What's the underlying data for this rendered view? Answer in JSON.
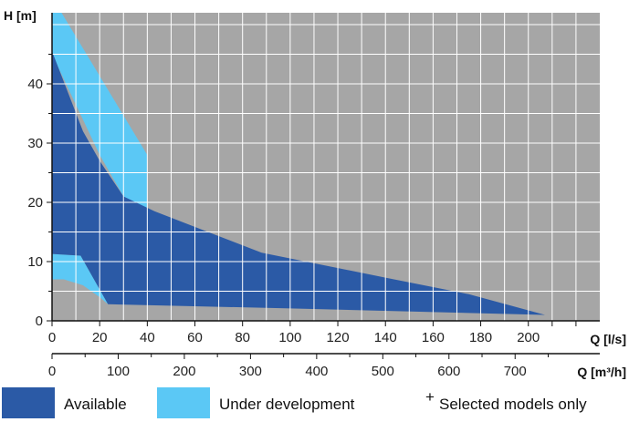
{
  "chart_data": {
    "type": "area",
    "title": "",
    "ylabel": "H [m]",
    "xlabel": "Q [l/s]",
    "xlabel_secondary": "Q [m³/h]",
    "xlim": [
      0,
      230
    ],
    "ylim": [
      0,
      52
    ],
    "secondary_xlim": [
      0,
      828
    ],
    "xticks": [
      0,
      20,
      40,
      60,
      80,
      100,
      120,
      140,
      160,
      180,
      200
    ],
    "xtick_labels": [
      "0",
      "20",
      "40",
      "60",
      "80",
      "100",
      "120",
      "140",
      "160",
      "180",
      "200"
    ],
    "secondary_xticks": [
      0,
      100,
      200,
      300,
      400,
      500,
      600,
      700
    ],
    "secondary_xtick_labels": [
      "0",
      "100",
      "200",
      "300",
      "400",
      "500",
      "600",
      "700"
    ],
    "yticks": [
      0,
      10,
      20,
      30,
      40
    ],
    "ytick_labels": [
      "0",
      "10",
      "20",
      "30",
      "40"
    ],
    "grid": true,
    "legend_position": "bottom",
    "colors": {
      "background": "#a6a6a6",
      "grid": "#ffffff",
      "available": "#2b5aa6",
      "under_development": "#5bc8f5",
      "axis": "#111111"
    },
    "series": [
      {
        "name": "Under development",
        "polygon": [
          [
            0,
            52
          ],
          [
            4,
            52
          ],
          [
            40,
            28
          ],
          [
            40,
            18.5
          ],
          [
            30,
            21
          ],
          [
            20,
            28
          ],
          [
            0,
            45
          ],
          [
            0,
            52
          ]
        ]
      },
      {
        "name": "Under development",
        "polygon": [
          [
            0,
            7
          ],
          [
            5,
            7
          ],
          [
            13,
            6
          ],
          [
            20,
            4
          ],
          [
            23.5,
            2.8
          ],
          [
            19,
            6
          ],
          [
            12,
            11
          ],
          [
            0,
            11.3
          ],
          [
            0,
            7
          ]
        ]
      },
      {
        "name": "Available",
        "polygon": [
          [
            0,
            45.5
          ],
          [
            13,
            32
          ],
          [
            20,
            27
          ],
          [
            30,
            21
          ],
          [
            43,
            18.5
          ],
          [
            88,
            11.5
          ],
          [
            140,
            7.3
          ],
          [
            175,
            4.5
          ],
          [
            207,
            1
          ]
        ],
        "lower": [
          [
            0,
            11.3
          ],
          [
            12,
            11
          ],
          [
            19,
            6
          ],
          [
            23.5,
            2.8
          ],
          [
            100,
            2.1
          ],
          [
            207,
            1
          ]
        ]
      }
    ]
  },
  "legend": {
    "available_label": "Available",
    "under_development_label": "Under development",
    "selected_label": "Selected models only",
    "selected_marker": "+"
  }
}
